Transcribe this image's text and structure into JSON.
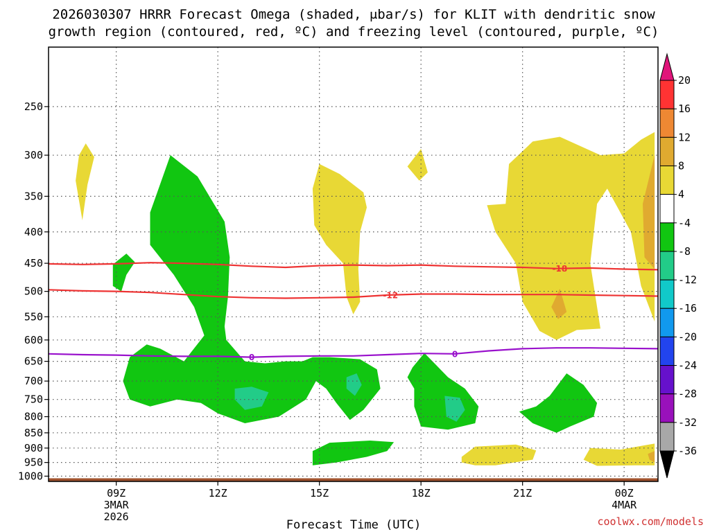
{
  "header": {
    "title_line1": "2026030307 HRRR Forecast Omega (shaded, μbar/s) for KLIT with dendritic snow",
    "title_line2": "growth region (contoured, red, ºC) and freezing level (contoured, purple, ºC)"
  },
  "footer": {
    "credit": "coolwx.com/models"
  },
  "chart_data": {
    "type": "time-height cross-section (filled contour)",
    "title": "2026030307 HRRR Forecast Omega (shaded, μbar/s) for KLIT with dendritic snow growth region (contoured, red, ºC) and freezing level (contoured, purple, ºC)",
    "xlabel": "Forecast Time (UTC)",
    "x_ticks": [
      {
        "label": "09Z",
        "sub1": "3MAR",
        "sub2": "2026",
        "hour": 9
      },
      {
        "label": "12Z",
        "sub1": "",
        "sub2": "",
        "hour": 12
      },
      {
        "label": "15Z",
        "sub1": "",
        "sub2": "",
        "hour": 15
      },
      {
        "label": "18Z",
        "sub1": "",
        "sub2": "",
        "hour": 18
      },
      {
        "label": "21Z",
        "sub1": "",
        "sub2": "",
        "hour": 21
      },
      {
        "label": "00Z",
        "sub1": "4MAR",
        "sub2": "",
        "hour": 24
      }
    ],
    "xlim": [
      7.0,
      25.0
    ],
    "yaxis": "pressure (hPa), log scale, inverted",
    "y_ticks": [
      250,
      300,
      350,
      400,
      450,
      500,
      550,
      600,
      650,
      700,
      750,
      800,
      850,
      900,
      950,
      1000
    ],
    "ylim": [
      200,
      1020
    ],
    "grid": true,
    "colorbar": {
      "levels": [
        "20",
        "16",
        "12",
        "8",
        "4",
        "-4",
        "-8",
        "-12",
        "-16",
        "-20",
        "-24",
        "-28",
        "-32",
        "-36"
      ],
      "colors": [
        "#ff3333",
        "#ee8833",
        "#e0aa30",
        "#e8d835",
        "#ffffff",
        "#11c611",
        "#22cc88",
        "#11c9c9",
        "#1199ee",
        "#2244ee",
        "#6611cc",
        "#9911bb",
        "#a8a8a8"
      ],
      "top_triangle": "#e0157a",
      "bottom_triangle": "#000000"
    },
    "shaded_regions": [
      {
        "fill": "#e8d835",
        "points": [
          [
            7.9,
            300
          ],
          [
            8.1,
            287
          ],
          [
            8.35,
            302
          ],
          [
            8.15,
            335
          ],
          [
            8.0,
            383
          ],
          [
            7.8,
            330
          ]
        ]
      },
      {
        "fill": "#e8d835",
        "points": [
          [
            18.0,
            293
          ],
          [
            18.2,
            320
          ],
          [
            17.95,
            330
          ],
          [
            17.6,
            313
          ]
        ]
      },
      {
        "fill": "#e8d835",
        "points": [
          [
            15.0,
            310
          ],
          [
            15.6,
            322
          ],
          [
            16.3,
            345
          ],
          [
            16.4,
            365
          ],
          [
            16.2,
            400
          ],
          [
            16.15,
            460
          ],
          [
            16.2,
            520
          ],
          [
            16.0,
            545
          ],
          [
            15.8,
            510
          ],
          [
            15.7,
            450
          ],
          [
            15.2,
            420
          ],
          [
            14.85,
            390
          ],
          [
            14.8,
            340
          ]
        ]
      },
      {
        "fill": "#e8d835",
        "points": [
          [
            19.95,
            362
          ],
          [
            20.5,
            360
          ],
          [
            20.6,
            310
          ],
          [
            21.3,
            285
          ],
          [
            22.1,
            280
          ],
          [
            23.3,
            300
          ],
          [
            24.0,
            298
          ],
          [
            24.5,
            283
          ],
          [
            24.9,
            275
          ],
          [
            24.9,
            560
          ],
          [
            24.5,
            490
          ],
          [
            24.2,
            400
          ],
          [
            23.5,
            340
          ],
          [
            23.2,
            360
          ],
          [
            23.0,
            450
          ],
          [
            23.2,
            530
          ],
          [
            23.3,
            575
          ],
          [
            22.6,
            578
          ],
          [
            22.0,
            600
          ],
          [
            21.5,
            580
          ],
          [
            21.0,
            520
          ],
          [
            20.8,
            450
          ],
          [
            20.2,
            400
          ]
        ]
      },
      {
        "fill": "#e0aa30",
        "points": [
          [
            24.9,
            300
          ],
          [
            24.9,
            460
          ],
          [
            24.6,
            440
          ],
          [
            24.55,
            360
          ]
        ]
      },
      {
        "fill": "#e0aa30",
        "points": [
          [
            22.1,
            495
          ],
          [
            22.3,
            540
          ],
          [
            22.05,
            555
          ],
          [
            21.85,
            530
          ]
        ]
      },
      {
        "fill": "#e8d835",
        "points": [
          [
            19.2,
            930
          ],
          [
            19.6,
            895
          ],
          [
            20.8,
            888
          ],
          [
            21.4,
            908
          ],
          [
            21.3,
            940
          ],
          [
            20.2,
            960
          ],
          [
            19.6,
            960
          ],
          [
            19.2,
            950
          ]
        ]
      },
      {
        "fill": "#e8d835",
        "points": [
          [
            22.8,
            940
          ],
          [
            23.0,
            900
          ],
          [
            23.9,
            905
          ],
          [
            24.5,
            893
          ],
          [
            24.9,
            885
          ],
          [
            24.9,
            960
          ],
          [
            24.3,
            960
          ],
          [
            23.2,
            962
          ]
        ]
      },
      {
        "fill": "#e0aa30",
        "points": [
          [
            24.7,
            920
          ],
          [
            24.9,
            910
          ],
          [
            24.9,
            950
          ],
          [
            24.75,
            940
          ]
        ]
      },
      {
        "fill": "#11c611",
        "points": [
          [
            8.9,
            452
          ],
          [
            9.3,
            434
          ],
          [
            9.55,
            448
          ],
          [
            9.3,
            470
          ],
          [
            9.15,
            500
          ],
          [
            8.9,
            490
          ]
        ]
      },
      {
        "fill": "#11c611",
        "points": [
          [
            10.0,
            372
          ],
          [
            10.6,
            300
          ],
          [
            11.4,
            325
          ],
          [
            11.75,
            350
          ],
          [
            12.2,
            385
          ],
          [
            12.35,
            440
          ],
          [
            12.3,
            510
          ],
          [
            12.2,
            570
          ],
          [
            12.25,
            600
          ],
          [
            12.8,
            650
          ],
          [
            13.4,
            655
          ],
          [
            14.0,
            650
          ],
          [
            14.5,
            650
          ],
          [
            14.8,
            640
          ],
          [
            15.3,
            640
          ],
          [
            16.2,
            645
          ],
          [
            16.7,
            670
          ],
          [
            16.8,
            720
          ],
          [
            16.3,
            780
          ],
          [
            15.9,
            810
          ],
          [
            15.5,
            760
          ],
          [
            15.2,
            720
          ],
          [
            14.9,
            700
          ],
          [
            14.6,
            750
          ],
          [
            13.8,
            800
          ],
          [
            12.8,
            820
          ],
          [
            12.0,
            790
          ],
          [
            11.5,
            760
          ],
          [
            10.8,
            750
          ],
          [
            10.0,
            770
          ],
          [
            9.4,
            750
          ],
          [
            9.2,
            700
          ],
          [
            9.4,
            640
          ],
          [
            9.9,
            610
          ],
          [
            10.3,
            620
          ],
          [
            11.0,
            650
          ],
          [
            11.6,
            590
          ],
          [
            11.3,
            530
          ],
          [
            10.7,
            470
          ],
          [
            10.0,
            420
          ]
        ]
      },
      {
        "fill": "#22cc88",
        "points": [
          [
            12.5,
            720
          ],
          [
            13.0,
            715
          ],
          [
            13.5,
            730
          ],
          [
            13.3,
            770
          ],
          [
            12.8,
            780
          ],
          [
            12.5,
            750
          ]
        ]
      },
      {
        "fill": "#22cc88",
        "points": [
          [
            15.8,
            690
          ],
          [
            16.1,
            680
          ],
          [
            16.25,
            710
          ],
          [
            16.05,
            740
          ],
          [
            15.8,
            720
          ]
        ]
      },
      {
        "fill": "#11c611",
        "points": [
          [
            17.75,
            665
          ],
          [
            18.1,
            630
          ],
          [
            18.8,
            690
          ],
          [
            19.3,
            720
          ],
          [
            19.7,
            770
          ],
          [
            19.6,
            820
          ],
          [
            18.8,
            840
          ],
          [
            18.0,
            830
          ],
          [
            17.8,
            770
          ],
          [
            17.8,
            720
          ],
          [
            17.6,
            690
          ]
        ]
      },
      {
        "fill": "#22cc88",
        "points": [
          [
            18.7,
            740
          ],
          [
            19.15,
            745
          ],
          [
            19.3,
            780
          ],
          [
            19.05,
            815
          ],
          [
            18.75,
            800
          ]
        ]
      },
      {
        "fill": "#11c611",
        "points": [
          [
            20.9,
            785
          ],
          [
            21.4,
            770
          ],
          [
            21.8,
            740
          ],
          [
            22.3,
            680
          ],
          [
            22.8,
            710
          ],
          [
            23.2,
            760
          ],
          [
            23.1,
            800
          ],
          [
            22.4,
            830
          ],
          [
            22.0,
            850
          ],
          [
            21.3,
            820
          ]
        ]
      },
      {
        "fill": "#11c611",
        "points": [
          [
            14.8,
            910
          ],
          [
            15.3,
            882
          ],
          [
            16.5,
            875
          ],
          [
            17.2,
            880
          ],
          [
            17.0,
            910
          ],
          [
            16.4,
            930
          ],
          [
            15.5,
            950
          ],
          [
            14.8,
            960
          ]
        ]
      }
    ],
    "contours": [
      {
        "label": "-18",
        "color": "#ee3333",
        "label_x": 22.1,
        "points": [
          [
            7,
            451
          ],
          [
            8,
            452
          ],
          [
            9,
            451
          ],
          [
            10,
            449
          ],
          [
            11,
            450
          ],
          [
            12,
            452
          ],
          [
            13,
            455
          ],
          [
            14,
            457
          ],
          [
            15,
            454
          ],
          [
            16,
            453
          ],
          [
            17,
            454
          ],
          [
            18,
            453
          ],
          [
            19,
            455
          ],
          [
            20,
            456
          ],
          [
            21,
            457
          ],
          [
            22,
            459
          ],
          [
            23,
            458
          ],
          [
            24,
            460
          ],
          [
            25,
            461
          ]
        ]
      },
      {
        "label": "-12",
        "color": "#ee3333",
        "label_x": 17.1,
        "points": [
          [
            7,
            497
          ],
          [
            8,
            499
          ],
          [
            9,
            500
          ],
          [
            10,
            502
          ],
          [
            11,
            506
          ],
          [
            12,
            510
          ],
          [
            13,
            512
          ],
          [
            14,
            513
          ],
          [
            15,
            512
          ],
          [
            16,
            511
          ],
          [
            17,
            507
          ],
          [
            18,
            505
          ],
          [
            19,
            505
          ],
          [
            20,
            506
          ],
          [
            21,
            506
          ],
          [
            22,
            506
          ],
          [
            23,
            507
          ],
          [
            24,
            508
          ],
          [
            25,
            509
          ]
        ]
      },
      {
        "label": "0",
        "color": "#9911cc",
        "label_x": 13.0,
        "points": [
          [
            7,
            632
          ],
          [
            8,
            634
          ],
          [
            9,
            635
          ],
          [
            10,
            637
          ],
          [
            11,
            638
          ],
          [
            12,
            638
          ],
          [
            13,
            640
          ],
          [
            14,
            638
          ],
          [
            15,
            637
          ],
          [
            16,
            637
          ],
          [
            17,
            634
          ],
          [
            18,
            631
          ],
          [
            19,
            632
          ],
          [
            20,
            625
          ],
          [
            21,
            620
          ],
          [
            22,
            618
          ],
          [
            23,
            618
          ],
          [
            24,
            619
          ],
          [
            25,
            620
          ]
        ]
      },
      {
        "label": "0",
        "color": "#9911cc",
        "label_x": 19.0,
        "label_only": true,
        "points": []
      }
    ],
    "terrain": {
      "color": "#a0522d",
      "top_hpa": 1008
    }
  }
}
